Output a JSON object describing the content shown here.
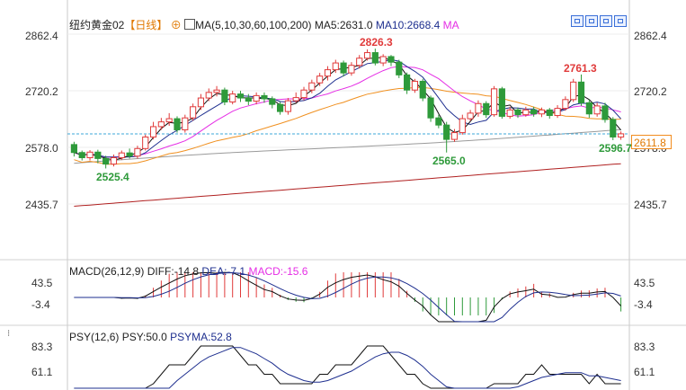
{
  "header": {
    "instrument": "纽约黄金02",
    "period": "【日线】",
    "plus_symbol": "⊕",
    "ma_label": "MA(5,10,30,60,100,200)",
    "ma5": "MA5:2631.0",
    "ma10": "MA10:2668.4",
    "ma_more": "MA"
  },
  "toolbar": [
    "zoom-in-icon",
    "zoom-out-icon",
    "play-icon",
    "step-forward-icon"
  ],
  "main_axis": {
    "left_ticks": [
      "2862.4",
      "2720.2",
      "2578.0",
      "2435.7"
    ],
    "right_ticks": [
      "2862.4",
      "2720.2",
      "2578.0",
      "2435.7"
    ],
    "current_price": "2611.8"
  },
  "annotations": {
    "high1": "2826.3",
    "high2": "2761.3",
    "low1": "2525.4",
    "low2": "2565.0",
    "low3": "2596.7"
  },
  "macd": {
    "label": "MACD(26,12,9)",
    "diff": "DIFF:-14.8",
    "dea": "DEA:-7.1",
    "macd": "MACD:-15.6",
    "ticks": [
      "43.5",
      "-3.4"
    ]
  },
  "psy": {
    "label": "PSY(12,6)",
    "psy": "PSY:50.0",
    "psyma": "PSYMA:52.8",
    "ticks": [
      "83.3",
      "61.1"
    ]
  },
  "colors": {
    "up": "#e03a3a",
    "down": "#2e9a3a",
    "ma5": "#111111",
    "ma10": "#1e2f8f",
    "ma30": "#e52ee5",
    "ma60": "#f09020",
    "ma100": "#9a9a9a",
    "ma200": "#b02020",
    "dashed": "#3da7d8"
  },
  "chart_data": {
    "type": "candlestick",
    "ylim": [
      2400,
      2880
    ],
    "candles": [
      {
        "o": 2585,
        "c": 2565,
        "h": 2592,
        "l": 2555
      },
      {
        "o": 2565,
        "c": 2552,
        "h": 2570,
        "l": 2545
      },
      {
        "o": 2552,
        "c": 2566,
        "h": 2571,
        "l": 2545
      },
      {
        "o": 2566,
        "c": 2550,
        "h": 2572,
        "l": 2538
      },
      {
        "o": 2550,
        "c": 2536,
        "h": 2557,
        "l": 2525
      },
      {
        "o": 2536,
        "c": 2552,
        "h": 2560,
        "l": 2530
      },
      {
        "o": 2552,
        "c": 2564,
        "h": 2570,
        "l": 2546
      },
      {
        "o": 2564,
        "c": 2556,
        "h": 2575,
        "l": 2550
      },
      {
        "o": 2556,
        "c": 2575,
        "h": 2582,
        "l": 2550
      },
      {
        "o": 2575,
        "c": 2604,
        "h": 2610,
        "l": 2570
      },
      {
        "o": 2604,
        "c": 2630,
        "h": 2642,
        "l": 2598
      },
      {
        "o": 2630,
        "c": 2642,
        "h": 2652,
        "l": 2622
      },
      {
        "o": 2642,
        "c": 2650,
        "h": 2664,
        "l": 2632
      },
      {
        "o": 2650,
        "c": 2622,
        "h": 2656,
        "l": 2615
      },
      {
        "o": 2622,
        "c": 2652,
        "h": 2660,
        "l": 2615
      },
      {
        "o": 2652,
        "c": 2680,
        "h": 2688,
        "l": 2645
      },
      {
        "o": 2680,
        "c": 2702,
        "h": 2712,
        "l": 2672
      },
      {
        "o": 2702,
        "c": 2716,
        "h": 2726,
        "l": 2694
      },
      {
        "o": 2716,
        "c": 2722,
        "h": 2732,
        "l": 2706
      },
      {
        "o": 2722,
        "c": 2692,
        "h": 2728,
        "l": 2684
      },
      {
        "o": 2692,
        "c": 2712,
        "h": 2720,
        "l": 2686
      },
      {
        "o": 2712,
        "c": 2702,
        "h": 2720,
        "l": 2692
      },
      {
        "o": 2702,
        "c": 2694,
        "h": 2712,
        "l": 2684
      },
      {
        "o": 2694,
        "c": 2708,
        "h": 2716,
        "l": 2686
      },
      {
        "o": 2708,
        "c": 2700,
        "h": 2716,
        "l": 2690
      },
      {
        "o": 2700,
        "c": 2686,
        "h": 2706,
        "l": 2676
      },
      {
        "o": 2686,
        "c": 2668,
        "h": 2692,
        "l": 2660
      },
      {
        "o": 2668,
        "c": 2695,
        "h": 2702,
        "l": 2660
      },
      {
        "o": 2695,
        "c": 2703,
        "h": 2716,
        "l": 2690
      },
      {
        "o": 2703,
        "c": 2722,
        "h": 2730,
        "l": 2696
      },
      {
        "o": 2722,
        "c": 2740,
        "h": 2748,
        "l": 2714
      },
      {
        "o": 2740,
        "c": 2757,
        "h": 2765,
        "l": 2732
      },
      {
        "o": 2757,
        "c": 2773,
        "h": 2782,
        "l": 2746
      },
      {
        "o": 2773,
        "c": 2790,
        "h": 2798,
        "l": 2765
      },
      {
        "o": 2790,
        "c": 2765,
        "h": 2796,
        "l": 2756
      },
      {
        "o": 2765,
        "c": 2784,
        "h": 2792,
        "l": 2758
      },
      {
        "o": 2784,
        "c": 2802,
        "h": 2810,
        "l": 2776
      },
      {
        "o": 2802,
        "c": 2816,
        "h": 2824,
        "l": 2796
      },
      {
        "o": 2816,
        "c": 2790,
        "h": 2826,
        "l": 2784
      },
      {
        "o": 2790,
        "c": 2806,
        "h": 2812,
        "l": 2782
      },
      {
        "o": 2806,
        "c": 2792,
        "h": 2810,
        "l": 2782
      },
      {
        "o": 2792,
        "c": 2760,
        "h": 2798,
        "l": 2752
      },
      {
        "o": 2760,
        "c": 2722,
        "h": 2766,
        "l": 2712
      },
      {
        "o": 2722,
        "c": 2744,
        "h": 2750,
        "l": 2715
      },
      {
        "o": 2744,
        "c": 2702,
        "h": 2750,
        "l": 2694
      },
      {
        "o": 2702,
        "c": 2652,
        "h": 2708,
        "l": 2642
      },
      {
        "o": 2652,
        "c": 2634,
        "h": 2660,
        "l": 2626
      },
      {
        "o": 2634,
        "c": 2598,
        "h": 2642,
        "l": 2565
      },
      {
        "o": 2598,
        "c": 2615,
        "h": 2624,
        "l": 2592
      },
      {
        "o": 2615,
        "c": 2650,
        "h": 2660,
        "l": 2610
      },
      {
        "o": 2650,
        "c": 2664,
        "h": 2672,
        "l": 2644
      },
      {
        "o": 2664,
        "c": 2688,
        "h": 2696,
        "l": 2655
      },
      {
        "o": 2688,
        "c": 2660,
        "h": 2694,
        "l": 2652
      },
      {
        "o": 2660,
        "c": 2725,
        "h": 2732,
        "l": 2655
      },
      {
        "o": 2725,
        "c": 2656,
        "h": 2730,
        "l": 2650
      },
      {
        "o": 2656,
        "c": 2672,
        "h": 2680,
        "l": 2650
      },
      {
        "o": 2672,
        "c": 2660,
        "h": 2678,
        "l": 2652
      },
      {
        "o": 2660,
        "c": 2672,
        "h": 2680,
        "l": 2655
      },
      {
        "o": 2672,
        "c": 2662,
        "h": 2680,
        "l": 2655
      },
      {
        "o": 2662,
        "c": 2672,
        "h": 2678,
        "l": 2654
      },
      {
        "o": 2672,
        "c": 2658,
        "h": 2677,
        "l": 2650
      },
      {
        "o": 2658,
        "c": 2676,
        "h": 2684,
        "l": 2652
      },
      {
        "o": 2676,
        "c": 2698,
        "h": 2706,
        "l": 2670
      },
      {
        "o": 2698,
        "c": 2742,
        "h": 2750,
        "l": 2692
      },
      {
        "o": 2742,
        "c": 2690,
        "h": 2761,
        "l": 2682
      },
      {
        "o": 2690,
        "c": 2662,
        "h": 2698,
        "l": 2652
      },
      {
        "o": 2662,
        "c": 2682,
        "h": 2690,
        "l": 2655
      },
      {
        "o": 2682,
        "c": 2648,
        "h": 2690,
        "l": 2640
      },
      {
        "o": 2648,
        "c": 2604,
        "h": 2654,
        "l": 2596
      },
      {
        "o": 2604,
        "c": 2612,
        "h": 2618,
        "l": 2597
      }
    ]
  }
}
